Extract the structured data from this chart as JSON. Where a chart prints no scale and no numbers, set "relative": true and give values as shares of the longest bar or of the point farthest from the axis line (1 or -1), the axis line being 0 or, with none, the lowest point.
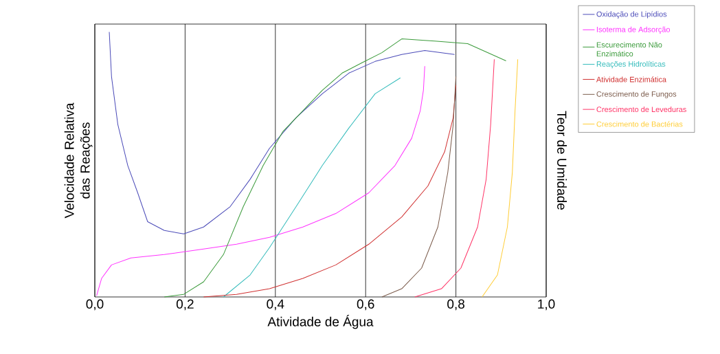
{
  "chart_data": {
    "type": "line",
    "relative": true,
    "xlabel": "Atividade de Água",
    "ylabel": "Velocidade Relativa das Reações",
    "y2label": "Teor de Umidade",
    "xlim": [
      0,
      1
    ],
    "xticks": [
      {
        "value": 0,
        "label": "0,0"
      },
      {
        "value": 0.2,
        "label": "0,2"
      },
      {
        "value": 0.4,
        "label": "0,4"
      },
      {
        "value": 0.6,
        "label": "0,6"
      },
      {
        "value": 0.8,
        "label": "0,8"
      },
      {
        "value": 1,
        "label": "1,0"
      }
    ],
    "grid": "x",
    "legend": "right",
    "series": [
      {
        "name": "Oxidação de Lipídios",
        "color": "#4a4ab8",
        "x": [
          0.032,
          0.037,
          0.051,
          0.073,
          0.095,
          0.117,
          0.154,
          0.197,
          0.241,
          0.3,
          0.344,
          0.387,
          0.446,
          0.504,
          0.563,
          0.621,
          0.68,
          0.731,
          0.797
        ],
        "values": [
          1.0,
          0.832,
          0.651,
          0.496,
          0.393,
          0.284,
          0.251,
          0.238,
          0.264,
          0.341,
          0.444,
          0.561,
          0.677,
          0.767,
          0.845,
          0.889,
          0.915,
          0.93,
          0.915
        ]
      },
      {
        "name": "Isoterma de Adsorção",
        "color": "#ff33ff",
        "x": [
          0.004,
          0.015,
          0.037,
          0.08,
          0.154,
          0.241,
          0.314,
          0.387,
          0.461,
          0.534,
          0.607,
          0.665,
          0.702,
          0.721,
          0.728,
          0.731
        ],
        "values": [
          0.005,
          0.07,
          0.121,
          0.147,
          0.16,
          0.181,
          0.199,
          0.225,
          0.264,
          0.315,
          0.393,
          0.496,
          0.599,
          0.703,
          0.78,
          0.871
        ]
      },
      {
        "name": "Escurecimento Não Enzimático",
        "color": "#3a9a3a",
        "x": [
          0.154,
          0.197,
          0.241,
          0.285,
          0.329,
          0.373,
          0.417,
          0.461,
          0.504,
          0.548,
          0.592,
          0.636,
          0.68,
          0.753,
          0.826,
          0.911
        ],
        "values": [
          0,
          0.01,
          0.057,
          0.16,
          0.341,
          0.496,
          0.625,
          0.703,
          0.78,
          0.845,
          0.884,
          0.922,
          0.974,
          0.966,
          0.956,
          0.891
        ]
      },
      {
        "name": "Reações Hidrolíticas",
        "color": "#33bbbb",
        "x": [
          0.285,
          0.344,
          0.387,
          0.446,
          0.504,
          0.563,
          0.621,
          0.677
        ],
        "values": [
          0,
          0.083,
          0.186,
          0.341,
          0.496,
          0.638,
          0.767,
          0.827
        ]
      },
      {
        "name": "Atividade Enzimática",
        "color": "#d03030",
        "x": [
          0.241,
          0.314,
          0.387,
          0.461,
          0.534,
          0.607,
          0.68,
          0.738,
          0.775,
          0.794,
          0.8
        ],
        "values": [
          0,
          0.01,
          0.031,
          0.07,
          0.121,
          0.199,
          0.302,
          0.419,
          0.548,
          0.677,
          0.8
        ]
      },
      {
        "name": "Crescimento de Fungos",
        "color": "#7a5a4a",
        "x": [
          0.636,
          0.68,
          0.724,
          0.76,
          0.782,
          0.794,
          0.8
        ],
        "values": [
          0,
          0.031,
          0.109,
          0.264,
          0.47,
          0.651,
          0.832
        ]
      },
      {
        "name": "Crescimento de Leveduras",
        "color": "#ff3366",
        "x": [
          0.709,
          0.768,
          0.811,
          0.848,
          0.867,
          0.877,
          0.885
        ],
        "values": [
          0,
          0.031,
          0.109,
          0.264,
          0.444,
          0.651,
          0.897
        ]
      },
      {
        "name": "Crescimento de Bactérias",
        "color": "#ffcc33",
        "x": [
          0.858,
          0.892,
          0.914,
          0.925,
          0.931,
          0.937
        ],
        "values": [
          0,
          0.083,
          0.264,
          0.47,
          0.703,
          0.897
        ]
      }
    ]
  }
}
